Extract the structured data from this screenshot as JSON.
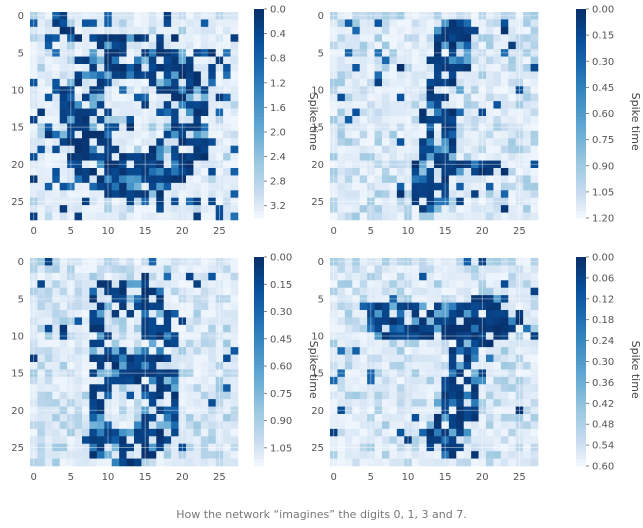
{
  "caption": "How the network “imagines” the digits 0, 1, 3 and 7.",
  "chart_data": [
    {
      "type": "heatmap",
      "grid_size": [
        28,
        28
      ],
      "x_ticks": [
        "0",
        "5",
        "10",
        "15",
        "20",
        "25"
      ],
      "y_ticks": [
        "0",
        "5",
        "10",
        "15",
        "20",
        "25"
      ],
      "colorbar": {
        "label": "Spike time",
        "colormap": "Blues_reversed",
        "range": [
          0.0,
          3.4
        ],
        "ticks": [
          "0.0",
          "0.4",
          "0.8",
          "1.2",
          "1.6",
          "2.0",
          "2.4",
          "2.8",
          "3.2"
        ]
      },
      "pattern": "ring",
      "digit": "0"
    },
    {
      "type": "heatmap",
      "grid_size": [
        28,
        28
      ],
      "x_ticks": [
        "0",
        "5",
        "10",
        "15",
        "20",
        "25"
      ],
      "y_ticks": [
        "0",
        "5",
        "10",
        "15",
        "20",
        "25"
      ],
      "colorbar": {
        "label": "Spike time",
        "colormap": "Blues_reversed",
        "range": [
          0.0,
          1.2
        ],
        "ticks": [
          "0.00",
          "0.15",
          "0.30",
          "0.45",
          "0.60",
          "0.75",
          "0.90",
          "1.05",
          "1.20"
        ]
      },
      "pattern": "vertical",
      "digit": "1"
    },
    {
      "type": "heatmap",
      "grid_size": [
        28,
        28
      ],
      "x_ticks": [
        "0",
        "5",
        "10",
        "15",
        "20",
        "25"
      ],
      "y_ticks": [
        "0",
        "5",
        "10",
        "15",
        "20",
        "25"
      ],
      "colorbar": {
        "label": "Spike time",
        "colormap": "Blues_reversed",
        "range": [
          0.0,
          1.15
        ],
        "ticks": [
          "0.00",
          "0.15",
          "0.30",
          "0.45",
          "0.60",
          "0.75",
          "0.90",
          "1.05"
        ]
      },
      "pattern": "three",
      "digit": "3"
    },
    {
      "type": "heatmap",
      "grid_size": [
        28,
        28
      ],
      "x_ticks": [
        "0",
        "5",
        "10",
        "15",
        "20",
        "25"
      ],
      "y_ticks": [
        "0",
        "5",
        "10",
        "15",
        "20",
        "25"
      ],
      "colorbar": {
        "label": "Spike time",
        "colormap": "Blues_reversed",
        "range": [
          0.0,
          0.6
        ],
        "ticks": [
          "0.00",
          "0.06",
          "0.12",
          "0.18",
          "0.24",
          "0.30",
          "0.36",
          "0.42",
          "0.48",
          "0.54",
          "0.60"
        ]
      },
      "pattern": "seven",
      "digit": "7"
    }
  ]
}
